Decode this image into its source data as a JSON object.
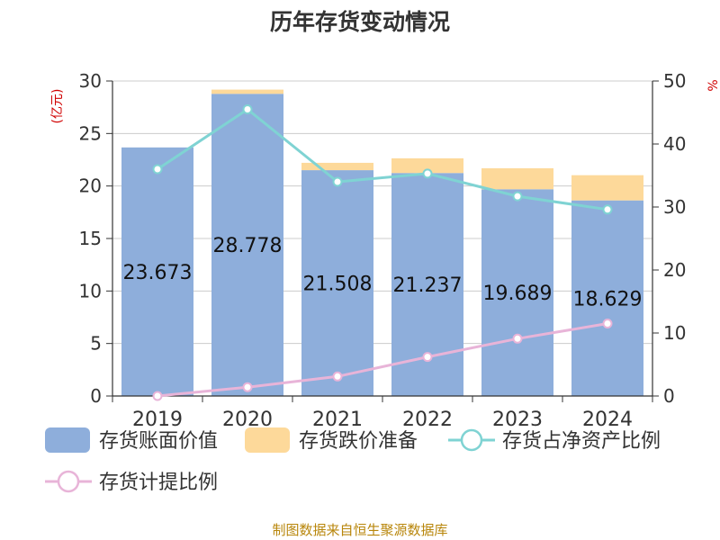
{
  "chart_data": {
    "type": "bar",
    "title": "历年存货变动情况",
    "categories": [
      "2019",
      "2020",
      "2021",
      "2022",
      "2023",
      "2024"
    ],
    "left_axis": {
      "unit": "(亿元)",
      "ylim": [
        0,
        30
      ],
      "ticks": [
        0,
        5,
        10,
        15,
        20,
        25,
        30
      ]
    },
    "right_axis": {
      "unit": "%",
      "ylim": [
        0,
        50
      ],
      "ticks": [
        0,
        10,
        20,
        30,
        40,
        50
      ]
    },
    "grid": true,
    "legend_position": "bottom",
    "series": [
      {
        "name": "存货账面价值",
        "type": "bar",
        "axis": "left",
        "stack": "s",
        "color": "#8eaedb",
        "values": [
          23.673,
          28.778,
          21.508,
          21.237,
          19.689,
          18.629
        ],
        "labels": [
          "23.673",
          "28.778",
          "21.508",
          "21.237",
          "19.689",
          "18.629"
        ]
      },
      {
        "name": "存货跌价准备",
        "type": "bar",
        "axis": "left",
        "stack": "s",
        "color": "#fdd99a",
        "values": [
          0.0,
          0.4,
          0.7,
          1.4,
          2.0,
          2.4
        ]
      },
      {
        "name": "存货占净资产比例",
        "type": "line",
        "axis": "right",
        "color": "#7fd3d3",
        "values": [
          36.0,
          45.5,
          34.0,
          35.3,
          31.7,
          29.6
        ]
      },
      {
        "name": "存货计提比例",
        "type": "line",
        "axis": "right",
        "color": "#e8b4d8",
        "values": [
          0.0,
          1.4,
          3.1,
          6.2,
          9.1,
          11.5
        ]
      }
    ],
    "source_note": "制图数据来自恒生聚源数据库"
  }
}
